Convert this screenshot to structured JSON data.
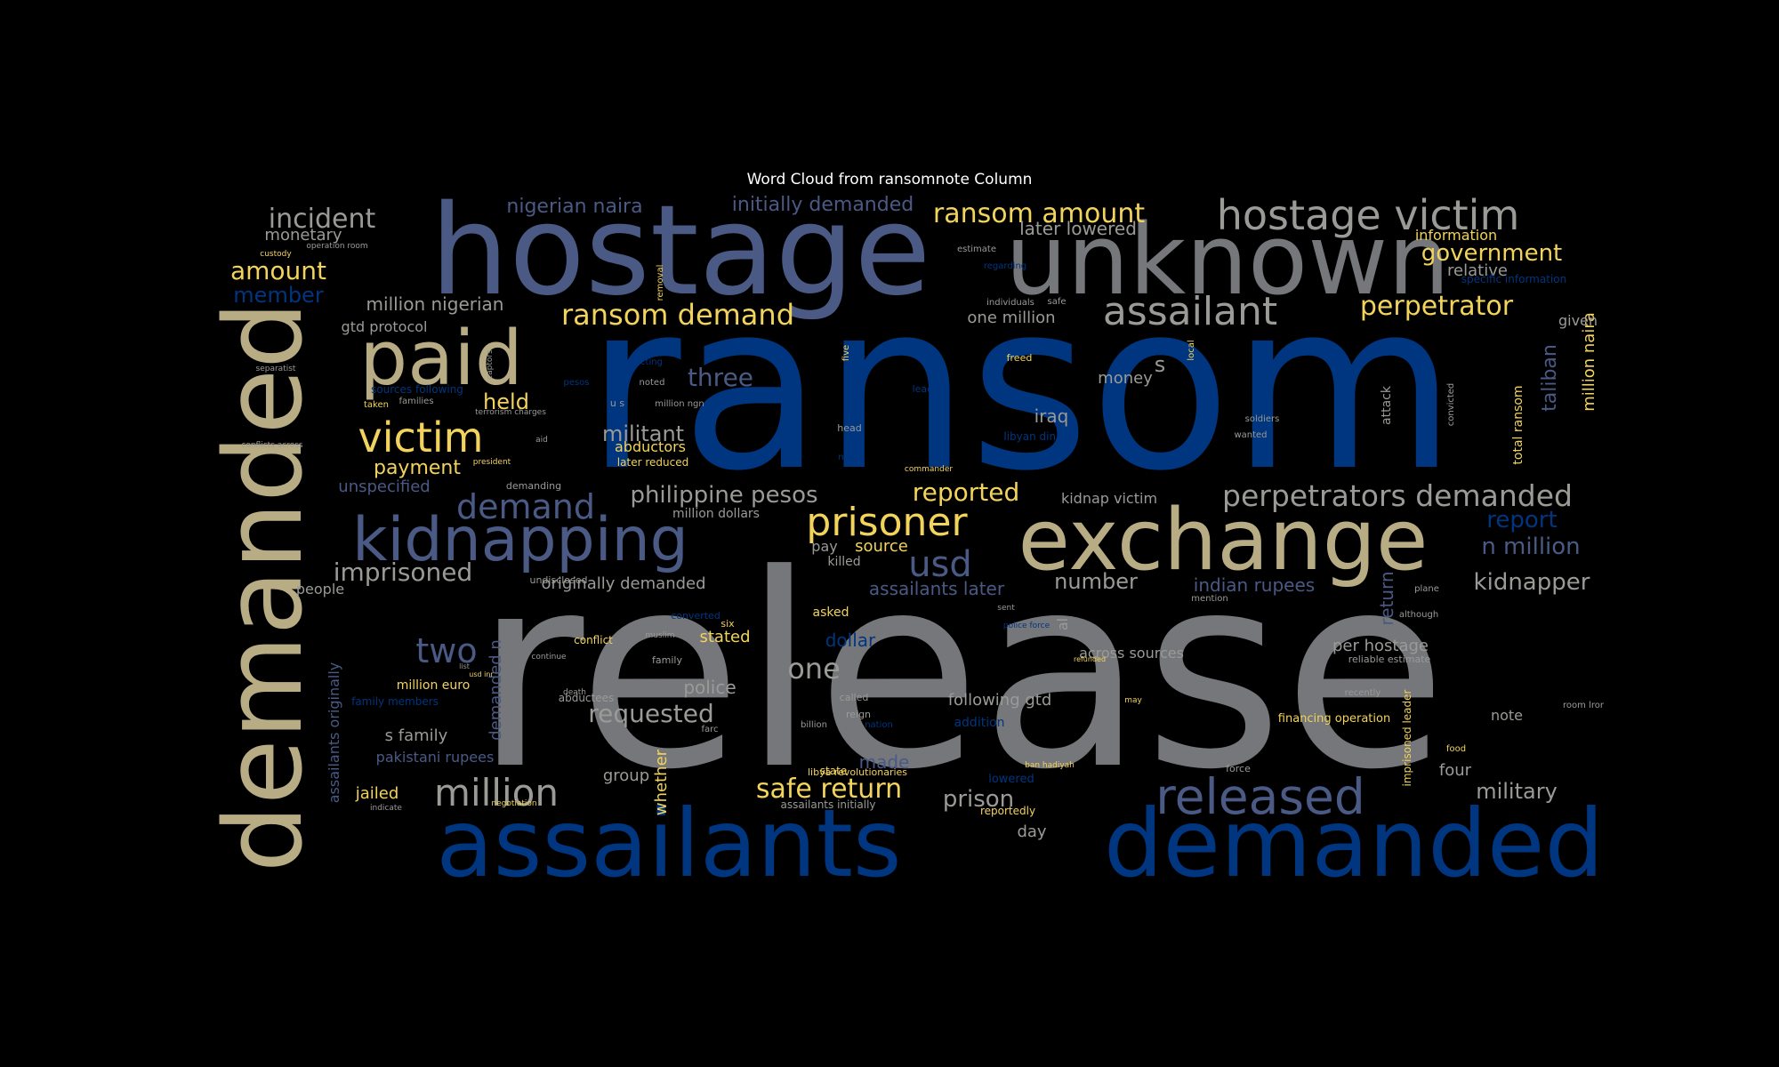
{
  "title": "Word Cloud from ransomnote Column",
  "palette": {
    "background": "#000000",
    "navy": "#00357f",
    "slate": "#4a5a85",
    "gray": "#75777b",
    "khaki": "#b8ac85",
    "gold": "#f2d35c",
    "light": "#9a9a96"
  },
  "words": [
    {
      "text": "release",
      "color": "#75777b"
    },
    {
      "text": "ransom",
      "color": "#00357f"
    },
    {
      "text": "hostage",
      "color": "#4a5a85"
    },
    {
      "text": "demanded",
      "color": "#b8ac85"
    },
    {
      "text": "unknown",
      "color": "#75777b"
    },
    {
      "text": "assailants",
      "color": "#00357f"
    },
    {
      "text": "demanded",
      "color": "#00357f"
    },
    {
      "text": "exchange",
      "color": "#b8ac85"
    },
    {
      "text": "kidnapping",
      "color": "#4a5a85"
    },
    {
      "text": "paid",
      "color": "#b8ac85"
    },
    {
      "text": "released",
      "color": "#4a5a85"
    },
    {
      "text": "hostage victim",
      "color": "#9a9a96"
    },
    {
      "text": "victim",
      "color": "#f2d35c"
    },
    {
      "text": "prisoner",
      "color": "#f2d35c"
    },
    {
      "text": "assailant",
      "color": "#9a9a96"
    },
    {
      "text": "million",
      "color": "#9a9a96"
    },
    {
      "text": "usd",
      "color": "#4a5a85"
    },
    {
      "text": "demand",
      "color": "#4a5a85"
    },
    {
      "text": "perpetrators demanded",
      "color": "#9a9a96"
    },
    {
      "text": "ransom demand",
      "color": "#f2d35c"
    },
    {
      "text": "two",
      "color": "#4a5a85"
    },
    {
      "text": "incident",
      "color": "#9a9a96"
    },
    {
      "text": "ransom amount",
      "color": "#f2d35c"
    },
    {
      "text": "safe return",
      "color": "#f2d35c"
    },
    {
      "text": "perpetrator",
      "color": "#f2d35c"
    },
    {
      "text": "government",
      "color": "#f2d35c"
    },
    {
      "text": "philippine pesos",
      "color": "#9a9a96"
    },
    {
      "text": "imprisoned",
      "color": "#9a9a96"
    },
    {
      "text": "reported",
      "color": "#f2d35c"
    },
    {
      "text": "amount",
      "color": "#f2d35c"
    },
    {
      "text": "kidnapper",
      "color": "#9a9a96"
    },
    {
      "text": "one",
      "color": "#9a9a96"
    },
    {
      "text": "three",
      "color": "#4a5a85"
    },
    {
      "text": "requested",
      "color": "#9a9a96"
    },
    {
      "text": "n million",
      "color": "#4a5a85"
    },
    {
      "text": "report",
      "color": "#00357f"
    },
    {
      "text": "militant",
      "color": "#9a9a96"
    },
    {
      "text": "held",
      "color": "#f2d35c"
    },
    {
      "text": "member",
      "color": "#00357f"
    },
    {
      "text": "military",
      "color": "#9a9a96"
    },
    {
      "text": "nigerian naira",
      "color": "#4a5a85"
    },
    {
      "text": "initially demanded",
      "color": "#4a5a85"
    },
    {
      "text": "number",
      "color": "#9a9a96"
    },
    {
      "text": "prison",
      "color": "#9a9a96"
    },
    {
      "text": "million nigerian",
      "color": "#9a9a96"
    },
    {
      "text": "payment",
      "color": "#f2d35c"
    },
    {
      "text": "taliban",
      "color": "#4a5a85"
    },
    {
      "text": "later lowered",
      "color": "#9a9a96"
    },
    {
      "text": "assailants later",
      "color": "#4a5a85"
    },
    {
      "text": "unspecified",
      "color": "#4a5a85"
    },
    {
      "text": "indian rupees",
      "color": "#4a5a85"
    },
    {
      "text": "million naira",
      "color": "#f2d35c"
    },
    {
      "text": "one million",
      "color": "#9a9a96"
    },
    {
      "text": "relative",
      "color": "#9a9a96"
    },
    {
      "text": "dollar",
      "color": "#00357f"
    },
    {
      "text": "police",
      "color": "#9a9a96"
    },
    {
      "text": "monetary",
      "color": "#9a9a96"
    },
    {
      "text": "gtd protocol",
      "color": "#9a9a96"
    },
    {
      "text": "following gtd",
      "color": "#9a9a96"
    },
    {
      "text": "return",
      "color": "#4a5a85"
    },
    {
      "text": "jailed",
      "color": "#f2d35c"
    },
    {
      "text": "made",
      "color": "#4a5a85"
    },
    {
      "text": "group",
      "color": "#9a9a96"
    },
    {
      "text": "s family",
      "color": "#9a9a96"
    },
    {
      "text": "originally demanded",
      "color": "#9a9a96"
    },
    {
      "text": "per hostage",
      "color": "#9a9a96"
    },
    {
      "text": "money",
      "color": "#9a9a96"
    },
    {
      "text": "iraq",
      "color": "#9a9a96"
    },
    {
      "text": "source",
      "color": "#f2d35c"
    },
    {
      "text": "stated",
      "color": "#f2d35c"
    },
    {
      "text": "across sources",
      "color": "#9a9a96"
    },
    {
      "text": "information",
      "color": "#f2d35c"
    },
    {
      "text": "abductors",
      "color": "#f2d35c"
    },
    {
      "text": "demanded n",
      "color": "#4a5a85"
    },
    {
      "text": "assailants originally",
      "color": "#4a5a85"
    },
    {
      "text": "day",
      "color": "#9a9a96"
    },
    {
      "text": "note",
      "color": "#9a9a96"
    },
    {
      "text": "four",
      "color": "#9a9a96"
    },
    {
      "text": "people",
      "color": "#9a9a96"
    },
    {
      "text": "pakistani rupees",
      "color": "#4a5a85"
    },
    {
      "text": "million euro",
      "color": "#f2d35c"
    },
    {
      "text": "whether",
      "color": "#f2d35c"
    },
    {
      "text": "pay",
      "color": "#9a9a96"
    },
    {
      "text": "killed",
      "color": "#9a9a96"
    },
    {
      "text": "asked",
      "color": "#f2d35c"
    },
    {
      "text": "million dollars",
      "color": "#9a9a96"
    },
    {
      "text": "kidnap victim",
      "color": "#9a9a96"
    },
    {
      "text": "later reduced",
      "color": "#f2d35c"
    },
    {
      "text": "s",
      "color": "#9a9a96"
    },
    {
      "text": "given",
      "color": "#9a9a96"
    },
    {
      "text": "total ransom",
      "color": "#f2d35c"
    },
    {
      "text": "attack",
      "color": "#9a9a96"
    },
    {
      "text": "al",
      "color": "#9a9a96"
    },
    {
      "text": "financing operation",
      "color": "#f2d35c"
    },
    {
      "text": "imprisoned leader",
      "color": "#f2d35c"
    },
    {
      "text": "assailants initially",
      "color": "#9a9a96"
    },
    {
      "text": "addition",
      "color": "#00357f"
    },
    {
      "text": "lowered",
      "color": "#00357f"
    },
    {
      "text": "reportedly",
      "color": "#f2d35c"
    },
    {
      "text": "state",
      "color": "#f2d35c"
    },
    {
      "text": "specific information",
      "color": "#00357f"
    },
    {
      "text": "sources following",
      "color": "#00357f"
    },
    {
      "text": "libyan dinars",
      "color": "#00357f"
    },
    {
      "text": "abductees",
      "color": "#9a9a96"
    },
    {
      "text": "family members",
      "color": "#00357f"
    },
    {
      "text": "conflict",
      "color": "#f2d35c"
    },
    {
      "text": "converted",
      "color": "#00357f"
    },
    {
      "text": "undisclosed",
      "color": "#9a9a96"
    },
    {
      "text": "family",
      "color": "#9a9a96"
    },
    {
      "text": "six",
      "color": "#f2d35c"
    },
    {
      "text": "reign",
      "color": "#9a9a96"
    },
    {
      "text": "called",
      "color": "#9a9a96"
    },
    {
      "text": "billion",
      "color": "#9a9a96"
    },
    {
      "text": "nation",
      "color": "#00357f"
    },
    {
      "text": "force",
      "color": "#9a9a96"
    },
    {
      "text": "libya revolutionaries",
      "color": "#f2d35c"
    },
    {
      "text": "reliable estimate",
      "color": "#9a9a96"
    },
    {
      "text": "recently",
      "color": "#9a9a96"
    },
    {
      "text": "mention",
      "color": "#9a9a96"
    },
    {
      "text": "plane",
      "color": "#9a9a96"
    },
    {
      "text": "although",
      "color": "#9a9a96"
    },
    {
      "text": "room lror",
      "color": "#9a9a96"
    },
    {
      "text": "food",
      "color": "#f2d35c"
    },
    {
      "text": "soldiers",
      "color": "#9a9a96"
    },
    {
      "text": "wanted",
      "color": "#9a9a96"
    },
    {
      "text": "convicted",
      "color": "#9a9a96"
    },
    {
      "text": "custody",
      "color": "#f2d35c"
    },
    {
      "text": "operation room",
      "color": "#9a9a96"
    },
    {
      "text": "separatist",
      "color": "#9a9a96"
    },
    {
      "text": "taken",
      "color": "#f2d35c"
    },
    {
      "text": "families",
      "color": "#9a9a96"
    },
    {
      "text": "terrorism charges",
      "color": "#9a9a96"
    },
    {
      "text": "conflicts across",
      "color": "#9a9a96"
    },
    {
      "text": "president",
      "color": "#f2d35c"
    },
    {
      "text": "aid",
      "color": "#9a9a96"
    },
    {
      "text": "u s",
      "color": "#9a9a96"
    },
    {
      "text": "million ngn",
      "color": "#9a9a96"
    },
    {
      "text": "pesos",
      "color": "#00357f"
    },
    {
      "text": "noted",
      "color": "#9a9a96"
    },
    {
      "text": "captors",
      "color": "#9a9a96"
    },
    {
      "text": "conflicting",
      "color": "#00357f"
    },
    {
      "text": "removal",
      "color": "#f2d35c"
    },
    {
      "text": "five",
      "color": "#f2d35c"
    },
    {
      "text": "freed",
      "color": "#f2d35c"
    },
    {
      "text": "leader",
      "color": "#00357f"
    },
    {
      "text": "head",
      "color": "#9a9a96"
    },
    {
      "text": "commander",
      "color": "#f2d35c"
    },
    {
      "text": "naira",
      "color": "#00357f"
    },
    {
      "text": "estimate",
      "color": "#9a9a96"
    },
    {
      "text": "regarding",
      "color": "#00357f"
    },
    {
      "text": "individuals",
      "color": "#9a9a96"
    },
    {
      "text": "safe",
      "color": "#9a9a96"
    },
    {
      "text": "local",
      "color": "#f2d35c"
    },
    {
      "text": "negotiation",
      "color": "#f2d35c"
    },
    {
      "text": "indicate",
      "color": "#9a9a96"
    },
    {
      "text": "demanding",
      "color": "#9a9a96"
    },
    {
      "text": "death",
      "color": "#9a9a96"
    },
    {
      "text": "continue",
      "color": "#9a9a96"
    },
    {
      "text": "list",
      "color": "#9a9a96"
    },
    {
      "text": "usd inr",
      "color": "#f2d35c"
    },
    {
      "text": "muslim",
      "color": "#9a9a96"
    },
    {
      "text": "police force",
      "color": "#00357f"
    },
    {
      "text": "sent",
      "color": "#9a9a96"
    },
    {
      "text": "refunded",
      "color": "#f2d35c"
    },
    {
      "text": "may",
      "color": "#f2d35c"
    },
    {
      "text": "ban hadiyah",
      "color": "#f2d35c"
    },
    {
      "text": "farc",
      "color": "#9a9a96"
    }
  ]
}
